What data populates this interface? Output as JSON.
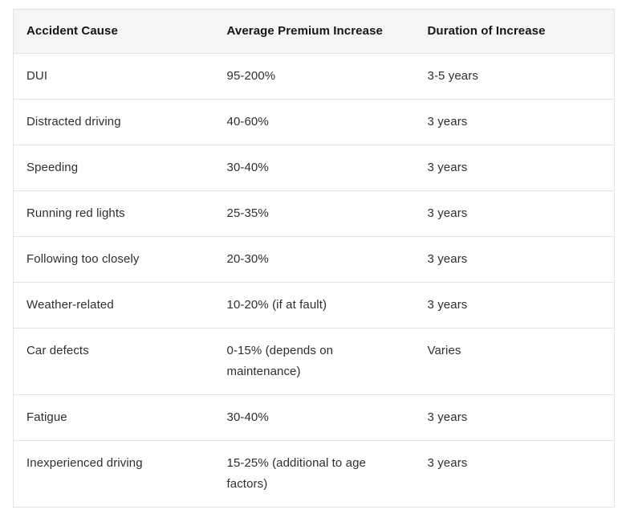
{
  "chart_data": {
    "type": "table",
    "columns": [
      "Accident Cause",
      "Average Premium Increase",
      "Duration of Increase"
    ],
    "rows": [
      {
        "cause": "DUI",
        "premium": "95-200%",
        "duration": "3-5 years"
      },
      {
        "cause": "Distracted driving",
        "premium": "40-60%",
        "duration": "3 years"
      },
      {
        "cause": "Speeding",
        "premium": "30-40%",
        "duration": "3 years"
      },
      {
        "cause": "Running red lights",
        "premium": "25-35%",
        "duration": "3 years"
      },
      {
        "cause": "Following too closely",
        "premium": "20-30%",
        "duration": "3 years"
      },
      {
        "cause": "Weather-related",
        "premium": "10-20% (if at fault)",
        "duration": "3 years"
      },
      {
        "cause": "Car defects",
        "premium": "0-15% (depends on\nmaintenance)",
        "duration": "Varies"
      },
      {
        "cause": "Fatigue",
        "premium": "30-40%",
        "duration": "3 years"
      },
      {
        "cause": "Inexperienced driving",
        "premium": "15-25% (additional to age\nfactors)",
        "duration": "3 years"
      }
    ]
  },
  "colors": {
    "header_background": "#f5f5f5",
    "border": "#e4e4e4",
    "header_text": "#161616",
    "body_text": "#2f2f2f",
    "page_background": "#ffffff"
  }
}
